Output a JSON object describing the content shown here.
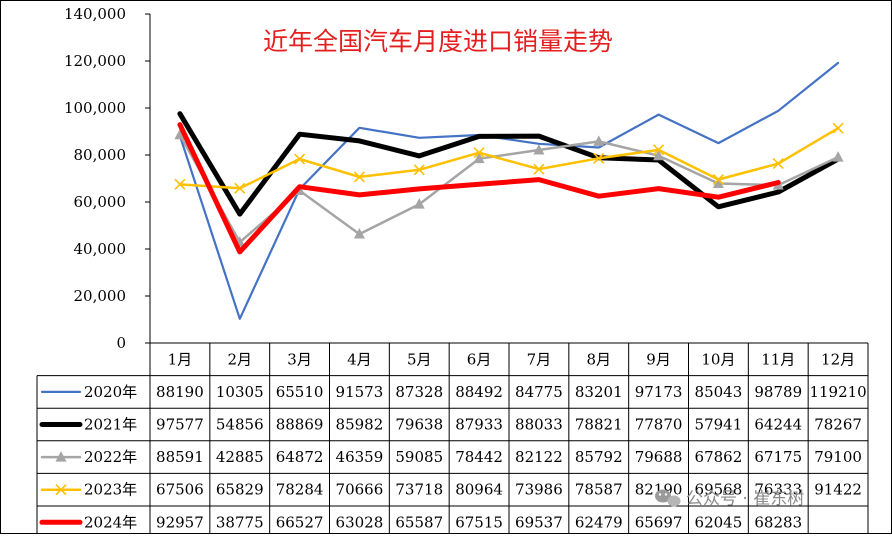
{
  "chart_data": {
    "type": "line",
    "title": "近年全国汽车月度进口销量走势",
    "categories": [
      "1月",
      "2月",
      "3月",
      "4月",
      "5月",
      "6月",
      "7月",
      "8月",
      "9月",
      "10月",
      "11月",
      "12月"
    ],
    "ylim": [
      0,
      140000
    ],
    "yticks": [
      "0",
      "20,000",
      "40,000",
      "60,000",
      "80,000",
      "100,000",
      "120,000",
      "140,000"
    ],
    "grid": false,
    "legend": "data-table-below",
    "series": [
      {
        "name": "2020年",
        "color": "#4472c4",
        "marker": "none",
        "values": [
          88190,
          10305,
          65510,
          91573,
          87328,
          88492,
          84775,
          83201,
          97173,
          85043,
          98789,
          119210
        ]
      },
      {
        "name": "2021年",
        "color": "#000000",
        "marker": "none",
        "values": [
          97577,
          54856,
          88869,
          85982,
          79638,
          87933,
          88033,
          78821,
          77870,
          57941,
          64244,
          78267
        ]
      },
      {
        "name": "2022年",
        "color": "#a5a5a5",
        "marker": "triangle",
        "values": [
          88591,
          42885,
          64872,
          46359,
          59085,
          78442,
          82122,
          85792,
          79688,
          67862,
          67175,
          79100
        ]
      },
      {
        "name": "2023年",
        "color": "#ffc000",
        "marker": "x",
        "values": [
          67506,
          65829,
          78284,
          70666,
          73718,
          80964,
          73986,
          78587,
          82190,
          69568,
          76333,
          91422
        ]
      },
      {
        "name": "2024年",
        "color": "#ff0000",
        "marker": "none",
        "values": [
          92957,
          38775,
          66527,
          63028,
          65587,
          67515,
          69537,
          62479,
          65697,
          62045,
          68283,
          null
        ]
      }
    ]
  },
  "watermark": {
    "text": "公众号 · 崔东树",
    "icon": "wechat-icon"
  }
}
